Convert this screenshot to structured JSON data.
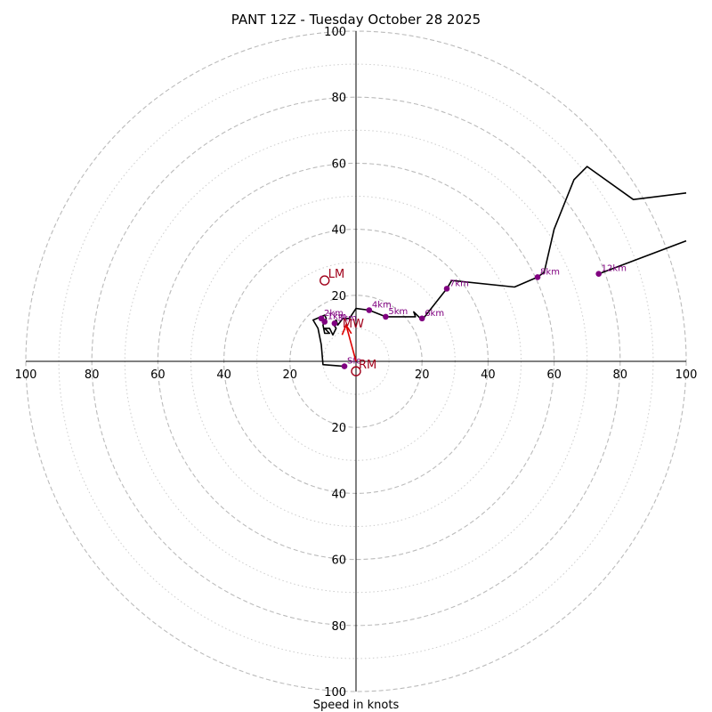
{
  "chart_data": {
    "type": "hodograph",
    "title": "PANT 12Z - Tuesday October 28 2025",
    "xlabel": "Speed in knots",
    "units": "knots",
    "range": [
      -100,
      100
    ],
    "ring_major": [
      20,
      40,
      60,
      80,
      100
    ],
    "ring_minor": [
      10,
      30,
      50,
      70,
      90
    ],
    "tick_labels": {
      "left": [
        "100",
        "80",
        "60",
        "40",
        "20"
      ],
      "right": [
        "20",
        "40",
        "60",
        "80",
        "100"
      ],
      "top": [
        "20",
        "40",
        "60",
        "80",
        "100"
      ],
      "bottom": [
        "20",
        "40",
        "60",
        "80",
        "100"
      ]
    },
    "tick_values": [
      20,
      40,
      60,
      80,
      100
    ],
    "colors": {
      "trace": "#000000",
      "height_marker": "#800080",
      "storm_motion": "#a0001a",
      "grid": "#bbbbbb"
    },
    "wind_trace": [
      [
        -3.5,
        -1.5
      ],
      [
        -10,
        -1
      ],
      [
        -10.5,
        5
      ],
      [
        -11.5,
        10
      ],
      [
        -13,
        12.5
      ],
      [
        -9.5,
        14
      ],
      [
        -9,
        13
      ],
      [
        -10,
        11
      ],
      [
        -9.5,
        8.5
      ],
      [
        -8,
        8.5
      ],
      [
        -9.5,
        10
      ],
      [
        -8,
        10
      ],
      [
        -7,
        8
      ],
      [
        -6,
        10
      ],
      [
        -7,
        11.5
      ],
      [
        -6,
        12.5
      ],
      [
        -5.5,
        11
      ],
      [
        -4,
        13
      ],
      [
        -2,
        13
      ],
      [
        0,
        16
      ],
      [
        4,
        15.5
      ],
      [
        9,
        13.5
      ],
      [
        18,
        13.5
      ],
      [
        17.5,
        15
      ],
      [
        20,
        12.5
      ],
      [
        27.5,
        22
      ],
      [
        29,
        24.5
      ],
      [
        48,
        22.5
      ],
      [
        55,
        25.5
      ],
      [
        57,
        27
      ],
      [
        60,
        40
      ],
      [
        66,
        55
      ],
      [
        70,
        59
      ],
      [
        84,
        49
      ],
      [
        100,
        51
      ]
    ],
    "upper_trace": [
      [
        73.5,
        26.5
      ],
      [
        100,
        36.5
      ]
    ],
    "height_markers": [
      {
        "label": "Sfc",
        "u": -3.5,
        "v": -1.5
      },
      {
        "label": "1km",
        "u": -9.5,
        "v": 12
      },
      {
        "label": "2km",
        "u": -10.5,
        "v": 13
      },
      {
        "label": "3km",
        "u": -6.5,
        "v": 11.5
      },
      {
        "label": "4km",
        "u": 4,
        "v": 15.5
      },
      {
        "label": "5km",
        "u": 9,
        "v": 13.5
      },
      {
        "label": "6km",
        "u": 20,
        "v": 13
      },
      {
        "label": "7km",
        "u": 27.5,
        "v": 22
      },
      {
        "label": "8km",
        "u": 55,
        "v": 25.5
      },
      {
        "label": "12km",
        "u": 73.5,
        "v": 26.5
      }
    ],
    "storm_motion": {
      "LM": {
        "label": "LM",
        "u": -9.5,
        "v": 24.5
      },
      "MW": {
        "label": "MW",
        "u": -3,
        "v": 11
      },
      "RM": {
        "label": "RM",
        "u": 0,
        "v": -3
      }
    }
  }
}
